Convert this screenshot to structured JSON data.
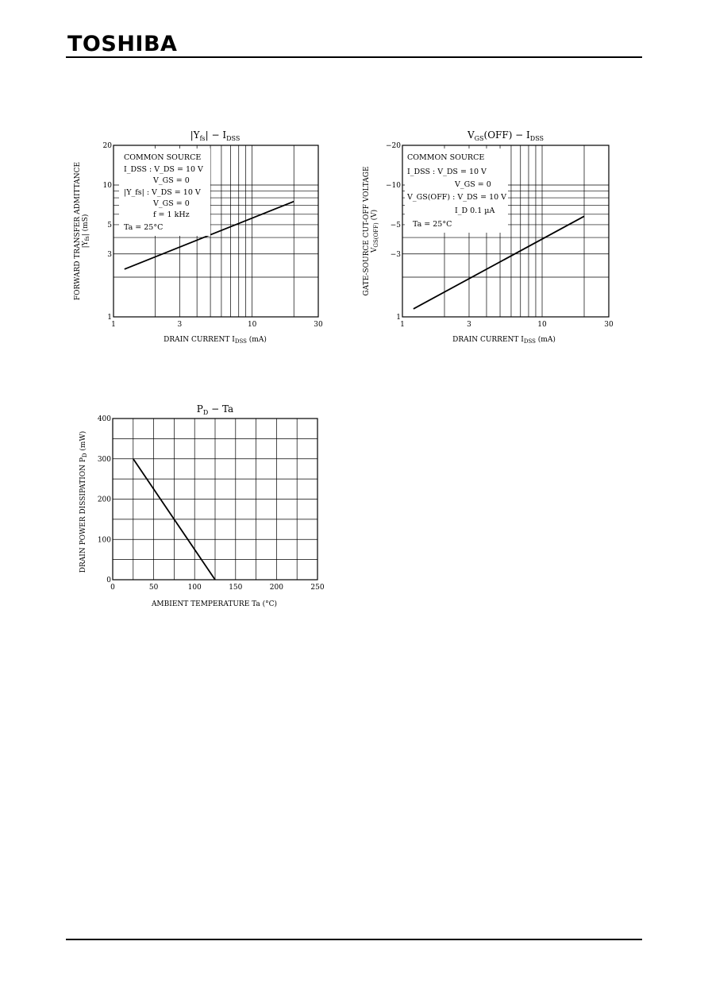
{
  "header": {
    "brand": "TOSHIBA"
  },
  "chart_data": [
    {
      "type": "line",
      "title": "|Y_fs| − I_DSS",
      "xlabel": "DRAIN CURRENT   I_DSS   (mA)",
      "ylabel_text": "FORWARD TRANSFER ADMITTANCE",
      "ylabel_symbol": "|Y_fs|   (mS)",
      "x_scale": "log",
      "y_scale": "log",
      "xlim": [
        1,
        30
      ],
      "ylim": [
        1,
        20
      ],
      "x_ticks": [
        "1",
        "3",
        "10",
        "30"
      ],
      "y_ticks": [
        "1",
        "3",
        "5",
        "10",
        "20"
      ],
      "conditions": [
        "COMMON SOURCE",
        "I_DSS :  V_DS = 10 V",
        "V_GS = 0",
        "|Y_fs|  :  V_DS = 10 V",
        "V_GS = 0",
        "f = 1 kHz",
        "Ta = 25°C"
      ],
      "series": [
        {
          "x": [
            1.2,
            20
          ],
          "y": [
            2.3,
            7.5
          ]
        }
      ]
    },
    {
      "type": "line",
      "title": "V_GS(OFF) − I_DSS",
      "xlabel": "DRAIN CURRENT   I_DSS   (mA)",
      "ylabel_text": "GATE-SOURCE CUT-OFF VOLTAGE",
      "ylabel_symbol": "V_GS(OFF)   (V)",
      "x_scale": "log",
      "y_scale": "log",
      "xlim": [
        1,
        30
      ],
      "ylim": [
        -1,
        -20
      ],
      "x_ticks": [
        "1",
        "3",
        "10",
        "30"
      ],
      "y_ticks": [
        "1",
        "−3",
        "−5",
        "−10",
        "−20"
      ],
      "conditions": [
        "COMMON SOURCE",
        "I_DSS       :  V_DS = 10 V",
        "V_GS = 0",
        "V_GS(OFF) :  V_DS = 10 V",
        "I_D    0.1 µA",
        "Ta = 25°C"
      ],
      "series": [
        {
          "x": [
            1.2,
            20
          ],
          "y": [
            -1.15,
            -5.8
          ]
        }
      ]
    },
    {
      "type": "line",
      "title": "P_D − Ta",
      "xlabel": "AMBIENT TEMPERATURE   Ta   (°C)",
      "ylabel_text": "DRAIN POWER DISSIPATION",
      "ylabel_symbol": "P_D   (mW)",
      "x_scale": "linear",
      "y_scale": "linear",
      "xlim": [
        0,
        250
      ],
      "ylim": [
        0,
        400
      ],
      "x_ticks": [
        "0",
        "50",
        "100",
        "150",
        "200",
        "250"
      ],
      "y_ticks": [
        "0",
        "100",
        "200",
        "300",
        "400"
      ],
      "series": [
        {
          "x": [
            25,
            125
          ],
          "y": [
            300,
            0
          ]
        }
      ]
    }
  ]
}
